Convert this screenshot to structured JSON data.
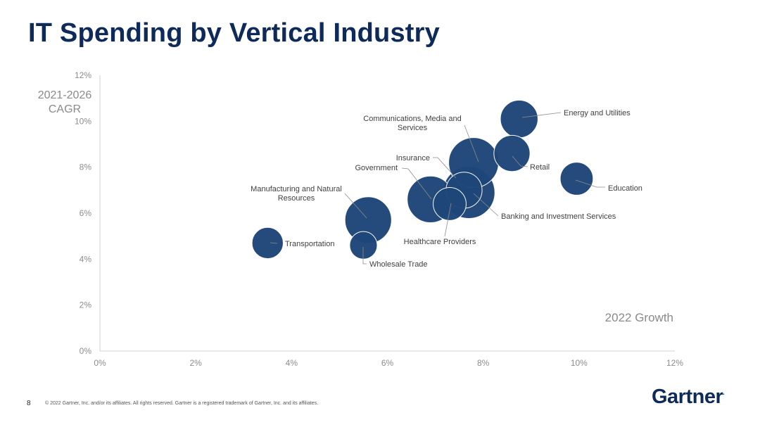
{
  "title": "IT Spending by Vertical Industry",
  "footer": {
    "page_number": "8",
    "copyright": "© 2022 Gartner, Inc. and/or its affiliates. All rights reserved. Gartner is a registered trademark of Gartner, Inc. and its affiliates."
  },
  "logo": {
    "text": "Gartner",
    "mark": "."
  },
  "colors": {
    "bubble": "#1e4678",
    "title": "#0d2a5a",
    "axis_text": "#8c8c8c",
    "leader": "#8c8c8c"
  },
  "chart_data": {
    "type": "scatter",
    "variant": "bubble",
    "xlabel": "2022 Growth",
    "ylabel": "2021-2026 CAGR",
    "xlim": [
      0,
      12
    ],
    "ylim": [
      0,
      12
    ],
    "x_ticks": [
      "0%",
      "2%",
      "4%",
      "6%",
      "8%",
      "10%",
      "12%"
    ],
    "y_ticks": [
      "0%",
      "2%",
      "4%",
      "6%",
      "8%",
      "10%",
      "12%"
    ],
    "grid": false,
    "points": [
      {
        "name": "Transportation",
        "x": 3.5,
        "y": 4.7,
        "size": 0.45
      },
      {
        "name": "Wholesale Trade",
        "x": 5.5,
        "y": 4.6,
        "size": 0.35
      },
      {
        "name": "Manufacturing and Natural Resources",
        "x": 5.6,
        "y": 5.7,
        "size": 1.0
      },
      {
        "name": "Government",
        "x": 6.9,
        "y": 6.6,
        "size": 1.0
      },
      {
        "name": "Healthcare Providers",
        "x": 7.3,
        "y": 6.4,
        "size": 0.5
      },
      {
        "name": "Banking and Investment Services",
        "x": 7.7,
        "y": 6.9,
        "size": 1.25
      },
      {
        "name": "Insurance",
        "x": 7.6,
        "y": 7.0,
        "size": 0.6
      },
      {
        "name": "Communications, Media and Services",
        "x": 7.8,
        "y": 8.2,
        "size": 1.15
      },
      {
        "name": "Retail",
        "x": 8.6,
        "y": 8.6,
        "size": 0.6
      },
      {
        "name": "Energy and Utilities",
        "x": 8.75,
        "y": 10.1,
        "size": 0.65
      },
      {
        "name": "Education",
        "x": 9.95,
        "y": 7.5,
        "size": 0.5
      }
    ]
  }
}
